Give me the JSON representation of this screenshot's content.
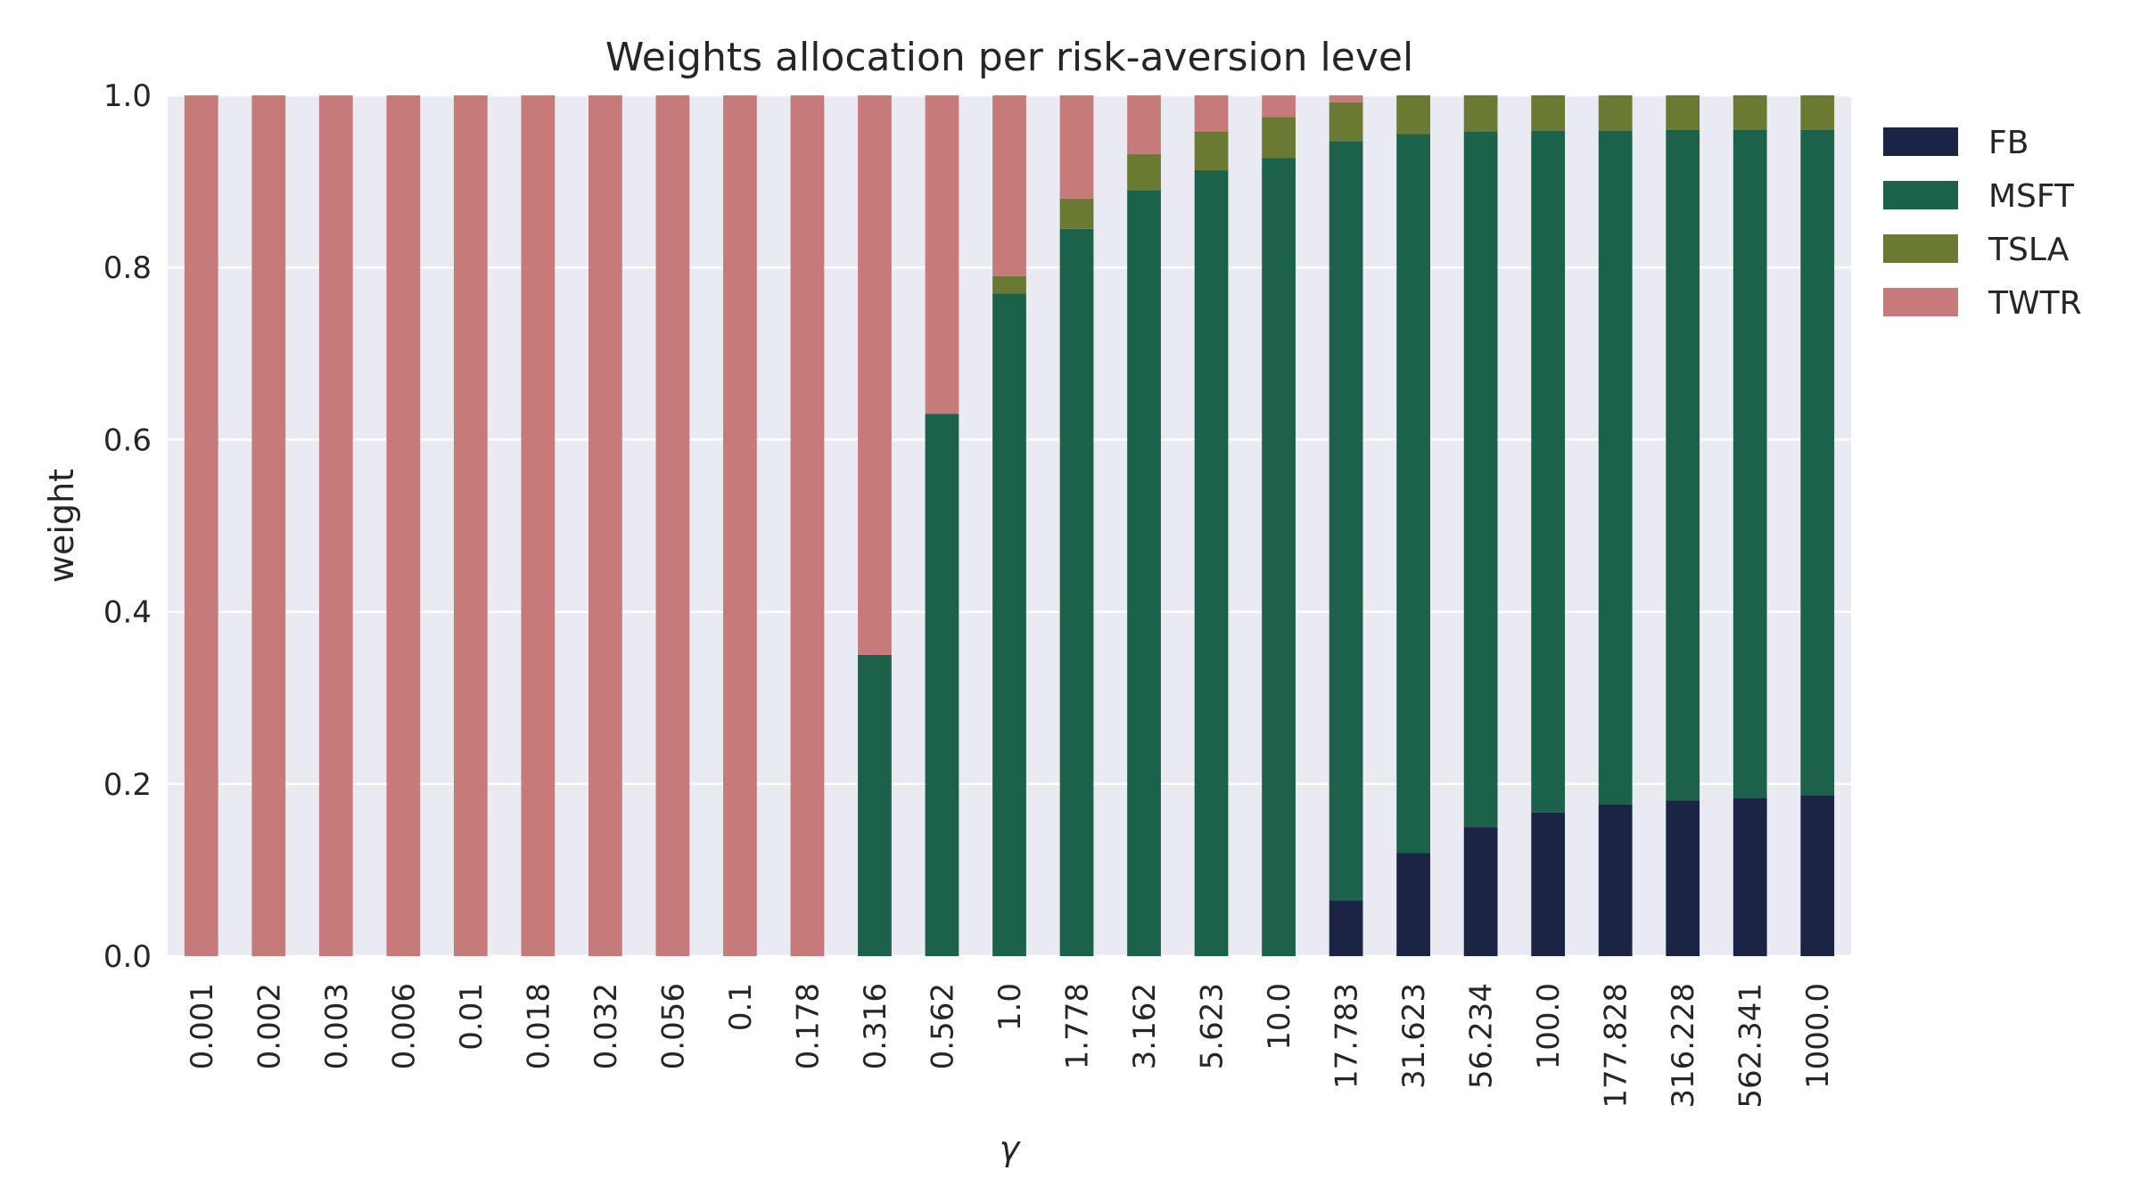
{
  "chart_data": {
    "type": "bar",
    "stacked": true,
    "title": "Weights allocation per risk-aversion level",
    "xlabel": "γ",
    "ylabel": "weight",
    "ylim": [
      0,
      1.0
    ],
    "yticks": [
      "0.0",
      "0.2",
      "0.4",
      "0.6",
      "0.8",
      "1.0"
    ],
    "grid": true,
    "legend_position": "outside-top-right",
    "categories": [
      "0.001",
      "0.002",
      "0.003",
      "0.006",
      "0.01",
      "0.018",
      "0.032",
      "0.056",
      "0.1",
      "0.178",
      "0.316",
      "0.562",
      "1.0",
      "1.778",
      "3.162",
      "5.623",
      "10.0",
      "17.783",
      "31.623",
      "56.234",
      "100.0",
      "177.828",
      "316.228",
      "562.341",
      "1000.0"
    ],
    "series": [
      {
        "name": "FB",
        "color": "#1b2444",
        "values": [
          0,
          0,
          0,
          0,
          0,
          0,
          0,
          0,
          0,
          0,
          0,
          0,
          0,
          0,
          0,
          0,
          0,
          0.065,
          0.12,
          0.15,
          0.167,
          0.176,
          0.181,
          0.184,
          0.187
        ]
      },
      {
        "name": "MSFT",
        "color": "#1c624a",
        "values": [
          0,
          0,
          0,
          0,
          0,
          0,
          0,
          0,
          0,
          0,
          0.35,
          0.63,
          0.77,
          0.845,
          0.89,
          0.913,
          0.927,
          0.882,
          0.835,
          0.808,
          0.792,
          0.783,
          0.779,
          0.776,
          0.773
        ]
      },
      {
        "name": "TSLA",
        "color": "#6a7a33",
        "values": [
          0,
          0,
          0,
          0,
          0,
          0,
          0,
          0,
          0,
          0,
          0,
          0,
          0.02,
          0.035,
          0.042,
          0.045,
          0.048,
          0.045,
          0.045,
          0.042,
          0.041,
          0.041,
          0.04,
          0.04,
          0.04
        ]
      },
      {
        "name": "TWTR",
        "color": "#c77a7a",
        "values": [
          1,
          1,
          1,
          1,
          1,
          1,
          1,
          1,
          1,
          1,
          0.65,
          0.37,
          0.21,
          0.12,
          0.068,
          0.042,
          0.025,
          0.008,
          0,
          0,
          0,
          0,
          0,
          0,
          0
        ]
      }
    ]
  }
}
